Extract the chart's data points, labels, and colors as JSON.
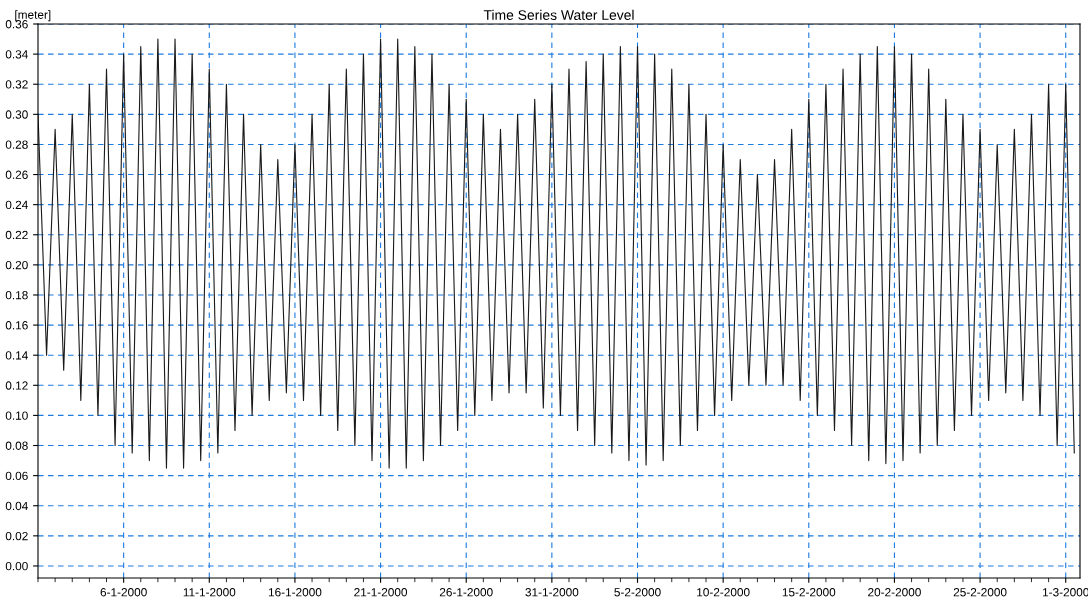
{
  "chart_data": {
    "type": "line",
    "title": "Time Series Water Level",
    "ylabel": "[meter]",
    "xlim": [
      "2000-01-01T00:00",
      "2000-03-01T20:00"
    ],
    "xticks": [
      {
        "value": "2000-01-06",
        "label": "6-1-2000"
      },
      {
        "value": "2000-01-11",
        "label": "11-1-2000"
      },
      {
        "value": "2000-01-16",
        "label": "16-1-2000"
      },
      {
        "value": "2000-01-21",
        "label": "21-1-2000"
      },
      {
        "value": "2000-01-26",
        "label": "26-1-2000"
      },
      {
        "value": "2000-01-31",
        "label": "31-1-2000"
      },
      {
        "value": "2000-02-05",
        "label": "5-2-2000"
      },
      {
        "value": "2000-02-10",
        "label": "10-2-2000"
      },
      {
        "value": "2000-02-15",
        "label": "15-2-2000"
      },
      {
        "value": "2000-02-20",
        "label": "20-2-2000"
      },
      {
        "value": "2000-02-25",
        "label": "25-2-2000"
      },
      {
        "value": "2000-03-01",
        "label": "1-3-2000"
      }
    ],
    "ylim": [
      -0.008,
      0.36
    ],
    "yticks": [
      {
        "value": 0,
        "label": "0.00"
      },
      {
        "value": 0.02,
        "label": "0.02"
      },
      {
        "value": 0.04,
        "label": "0.04"
      },
      {
        "value": 0.06,
        "label": "0.06"
      },
      {
        "value": 0.08,
        "label": "0.08"
      },
      {
        "value": 0.1,
        "label": "0.10"
      },
      {
        "value": 0.12,
        "label": "0.12"
      },
      {
        "value": 0.14,
        "label": "0.14"
      },
      {
        "value": 0.16,
        "label": "0.16"
      },
      {
        "value": 0.18,
        "label": "0.18"
      },
      {
        "value": 0.2,
        "label": "0.20"
      },
      {
        "value": 0.22,
        "label": "0.22"
      },
      {
        "value": 0.24,
        "label": "0.24"
      },
      {
        "value": 0.26,
        "label": "0.26"
      },
      {
        "value": 0.28,
        "label": "0.28"
      },
      {
        "value": 0.3,
        "label": "0.30"
      },
      {
        "value": 0.32,
        "label": "0.32"
      },
      {
        "value": 0.34,
        "label": "0.34"
      },
      {
        "value": 0.36,
        "label": "0.36"
      }
    ],
    "grid": true,
    "marker": "none",
    "line_style": "solid",
    "x": [
      "2000-01-01T00:00",
      "2000-01-01T12:00",
      "2000-01-02T00:00",
      "2000-01-02T12:00",
      "2000-01-03T00:00",
      "2000-01-03T12:00",
      "2000-01-04T00:00",
      "2000-01-04T12:00",
      "2000-01-05T00:00",
      "2000-01-05T12:00",
      "2000-01-06T00:00",
      "2000-01-06T12:00",
      "2000-01-07T00:00",
      "2000-01-07T12:00",
      "2000-01-08T00:00",
      "2000-01-08T12:00",
      "2000-01-09T00:00",
      "2000-01-09T12:00",
      "2000-01-10T00:00",
      "2000-01-10T12:00",
      "2000-01-11T00:00",
      "2000-01-11T12:00",
      "2000-01-12T00:00",
      "2000-01-12T12:00",
      "2000-01-13T00:00",
      "2000-01-13T12:00",
      "2000-01-14T00:00",
      "2000-01-14T12:00",
      "2000-01-15T00:00",
      "2000-01-15T12:00",
      "2000-01-16T00:00",
      "2000-01-16T12:00",
      "2000-01-17T00:00",
      "2000-01-17T12:00",
      "2000-01-18T00:00",
      "2000-01-18T12:00",
      "2000-01-19T00:00",
      "2000-01-19T12:00",
      "2000-01-20T00:00",
      "2000-01-20T12:00",
      "2000-01-21T00:00",
      "2000-01-21T12:00",
      "2000-01-22T00:00",
      "2000-01-22T12:00",
      "2000-01-23T00:00",
      "2000-01-23T12:00",
      "2000-01-24T00:00",
      "2000-01-24T12:00",
      "2000-01-25T00:00",
      "2000-01-25T12:00",
      "2000-01-26T00:00",
      "2000-01-26T12:00",
      "2000-01-27T00:00",
      "2000-01-27T12:00",
      "2000-01-28T00:00",
      "2000-01-28T12:00",
      "2000-01-29T00:00",
      "2000-01-29T12:00",
      "2000-01-30T00:00",
      "2000-01-30T12:00",
      "2000-01-31T00:00",
      "2000-01-31T12:00",
      "2000-02-01T00:00",
      "2000-02-01T12:00",
      "2000-02-02T00:00",
      "2000-02-02T12:00",
      "2000-02-03T00:00",
      "2000-02-03T12:00",
      "2000-02-04T00:00",
      "2000-02-04T12:00",
      "2000-02-05T00:00",
      "2000-02-05T12:00",
      "2000-02-06T00:00",
      "2000-02-06T12:00",
      "2000-02-07T00:00",
      "2000-02-07T12:00",
      "2000-02-08T00:00",
      "2000-02-08T12:00",
      "2000-02-09T00:00",
      "2000-02-09T12:00",
      "2000-02-10T00:00",
      "2000-02-10T12:00",
      "2000-02-11T00:00",
      "2000-02-11T12:00",
      "2000-02-12T00:00",
      "2000-02-12T12:00",
      "2000-02-13T00:00",
      "2000-02-13T12:00",
      "2000-02-14T00:00",
      "2000-02-14T12:00",
      "2000-02-15T00:00",
      "2000-02-15T12:00",
      "2000-02-16T00:00",
      "2000-02-16T12:00",
      "2000-02-17T00:00",
      "2000-02-17T12:00",
      "2000-02-18T00:00",
      "2000-02-18T12:00",
      "2000-02-19T00:00",
      "2000-02-19T12:00",
      "2000-02-20T00:00",
      "2000-02-20T12:00",
      "2000-02-21T00:00",
      "2000-02-21T12:00",
      "2000-02-22T00:00",
      "2000-02-22T12:00",
      "2000-02-23T00:00",
      "2000-02-23T12:00",
      "2000-02-24T00:00",
      "2000-02-24T12:00",
      "2000-02-25T00:00",
      "2000-02-25T12:00",
      "2000-02-26T00:00",
      "2000-02-26T12:00",
      "2000-02-27T00:00",
      "2000-02-27T12:00",
      "2000-02-28T00:00",
      "2000-02-28T12:00",
      "2000-02-29T00:00",
      "2000-02-29T12:00",
      "2000-03-01T00:00",
      "2000-03-01T12:00"
    ],
    "series": [
      {
        "color": "#1a1a1a",
        "values": [
          0.3,
          0.14,
          0.29,
          0.13,
          0.3,
          0.11,
          0.32,
          0.1,
          0.33,
          0.08,
          0.34,
          0.075,
          0.345,
          0.07,
          0.35,
          0.065,
          0.35,
          0.065,
          0.34,
          0.07,
          0.33,
          0.075,
          0.32,
          0.09,
          0.3,
          0.1,
          0.28,
          0.11,
          0.27,
          0.115,
          0.28,
          0.11,
          0.3,
          0.1,
          0.32,
          0.09,
          0.33,
          0.08,
          0.34,
          0.07,
          0.35,
          0.065,
          0.35,
          0.065,
          0.345,
          0.07,
          0.34,
          0.08,
          0.32,
          0.09,
          0.31,
          0.1,
          0.3,
          0.11,
          0.29,
          0.115,
          0.3,
          0.115,
          0.31,
          0.105,
          0.32,
          0.1,
          0.33,
          0.09,
          0.335,
          0.08,
          0.34,
          0.075,
          0.345,
          0.07,
          0.345,
          0.067,
          0.34,
          0.07,
          0.33,
          0.08,
          0.32,
          0.09,
          0.3,
          0.1,
          0.28,
          0.11,
          0.27,
          0.12,
          0.26,
          0.12,
          0.27,
          0.12,
          0.29,
          0.11,
          0.31,
          0.1,
          0.32,
          0.09,
          0.33,
          0.08,
          0.34,
          0.07,
          0.345,
          0.068,
          0.345,
          0.07,
          0.34,
          0.075,
          0.33,
          0.08,
          0.31,
          0.09,
          0.3,
          0.1,
          0.29,
          0.11,
          0.28,
          0.115,
          0.29,
          0.11,
          0.3,
          0.1,
          0.32,
          0.08,
          0.32,
          0.075
        ]
      }
    ]
  }
}
